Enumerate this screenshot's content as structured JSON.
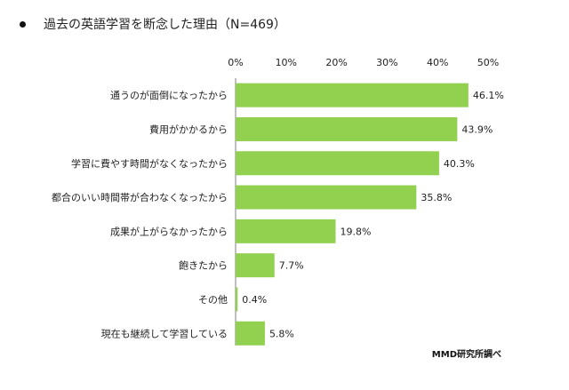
{
  "title": "過去の英語学習を断念した理由（N=469）",
  "source": "MMD研究所調べ",
  "colors": {
    "bar": "#92D050",
    "axis": "#7f7f7f"
  },
  "chart_data": {
    "type": "bar",
    "orientation": "horizontal",
    "title": "過去の英語学習を断念した理由（N=469）",
    "categories": [
      "通うのが面倒になったから",
      "費用がかかるから",
      "学習に費やす時間がなくなったから",
      "都合のいい時間帯が合わなくなったから",
      "成果が上がらなかったから",
      "飽きたから",
      "その他",
      "現在も継続して学習している"
    ],
    "values": [
      46.1,
      43.9,
      40.3,
      35.8,
      19.8,
      7.7,
      0.4,
      5.8
    ],
    "value_labels": [
      "46.1%",
      "43.9%",
      "40.3%",
      "35.8%",
      "19.8%",
      "7.7%",
      "0.4%",
      "5.8%"
    ],
    "xlim": [
      0,
      50
    ],
    "ticks": [
      0,
      10,
      20,
      30,
      40,
      50
    ],
    "tick_labels": [
      "0%",
      "10%",
      "20%",
      "30%",
      "40%",
      "50%"
    ],
    "tick_position": "top",
    "grid": false,
    "legend": "none"
  }
}
